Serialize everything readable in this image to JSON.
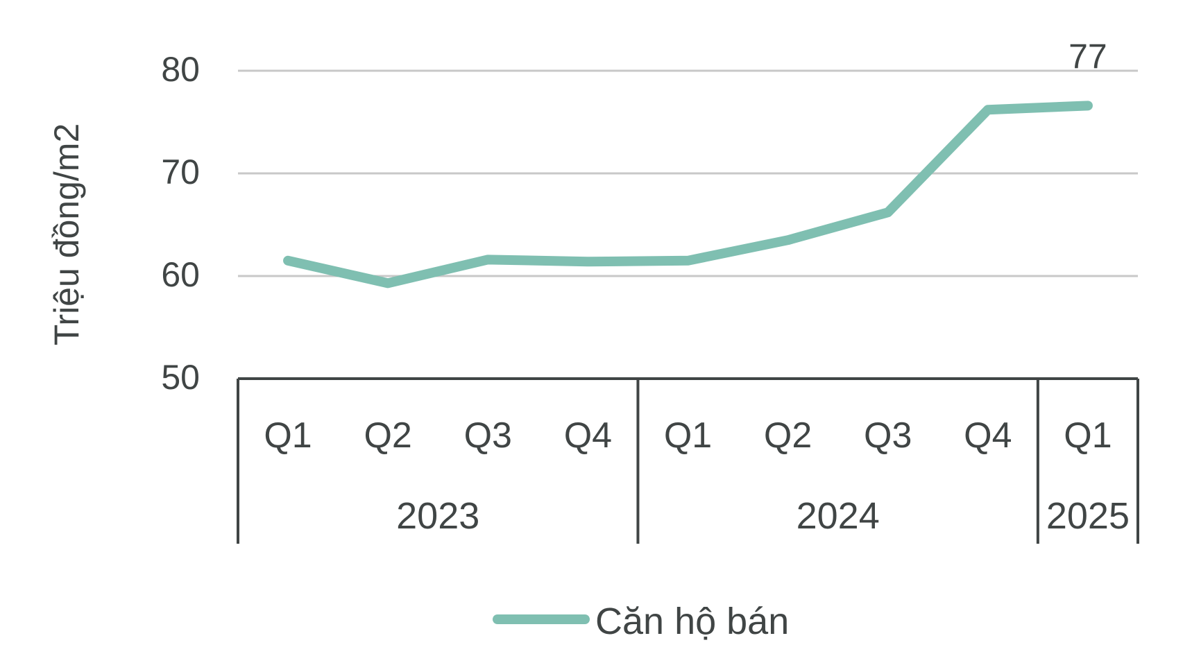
{
  "chart_data": {
    "type": "line",
    "title": "",
    "xlabel": "",
    "ylabel": "Triệu đồng/m2",
    "ylim": [
      50,
      80
    ],
    "yticks": [
      "50",
      "60",
      "70",
      "80"
    ],
    "grid": true,
    "legend_position": "bottom",
    "categories": [
      "Q1",
      "Q2",
      "Q3",
      "Q4",
      "Q1",
      "Q2",
      "Q3",
      "Q4",
      "Q1"
    ],
    "groups": [
      {
        "label": "2023",
        "count": 4
      },
      {
        "label": "2024",
        "count": 4
      },
      {
        "label": "2025",
        "count": 1
      }
    ],
    "series": [
      {
        "name": "Căn hộ bán",
        "color": "#7fbfb1",
        "values": [
          61.5,
          59.3,
          61.6,
          61.4,
          61.5,
          63.5,
          66.2,
          76.2,
          76.6
        ]
      }
    ],
    "data_labels": [
      {
        "index": 8,
        "text": "77"
      }
    ],
    "colors": {
      "axis": "#404545",
      "grid": "#c8c8c8",
      "text": "#404545"
    }
  }
}
